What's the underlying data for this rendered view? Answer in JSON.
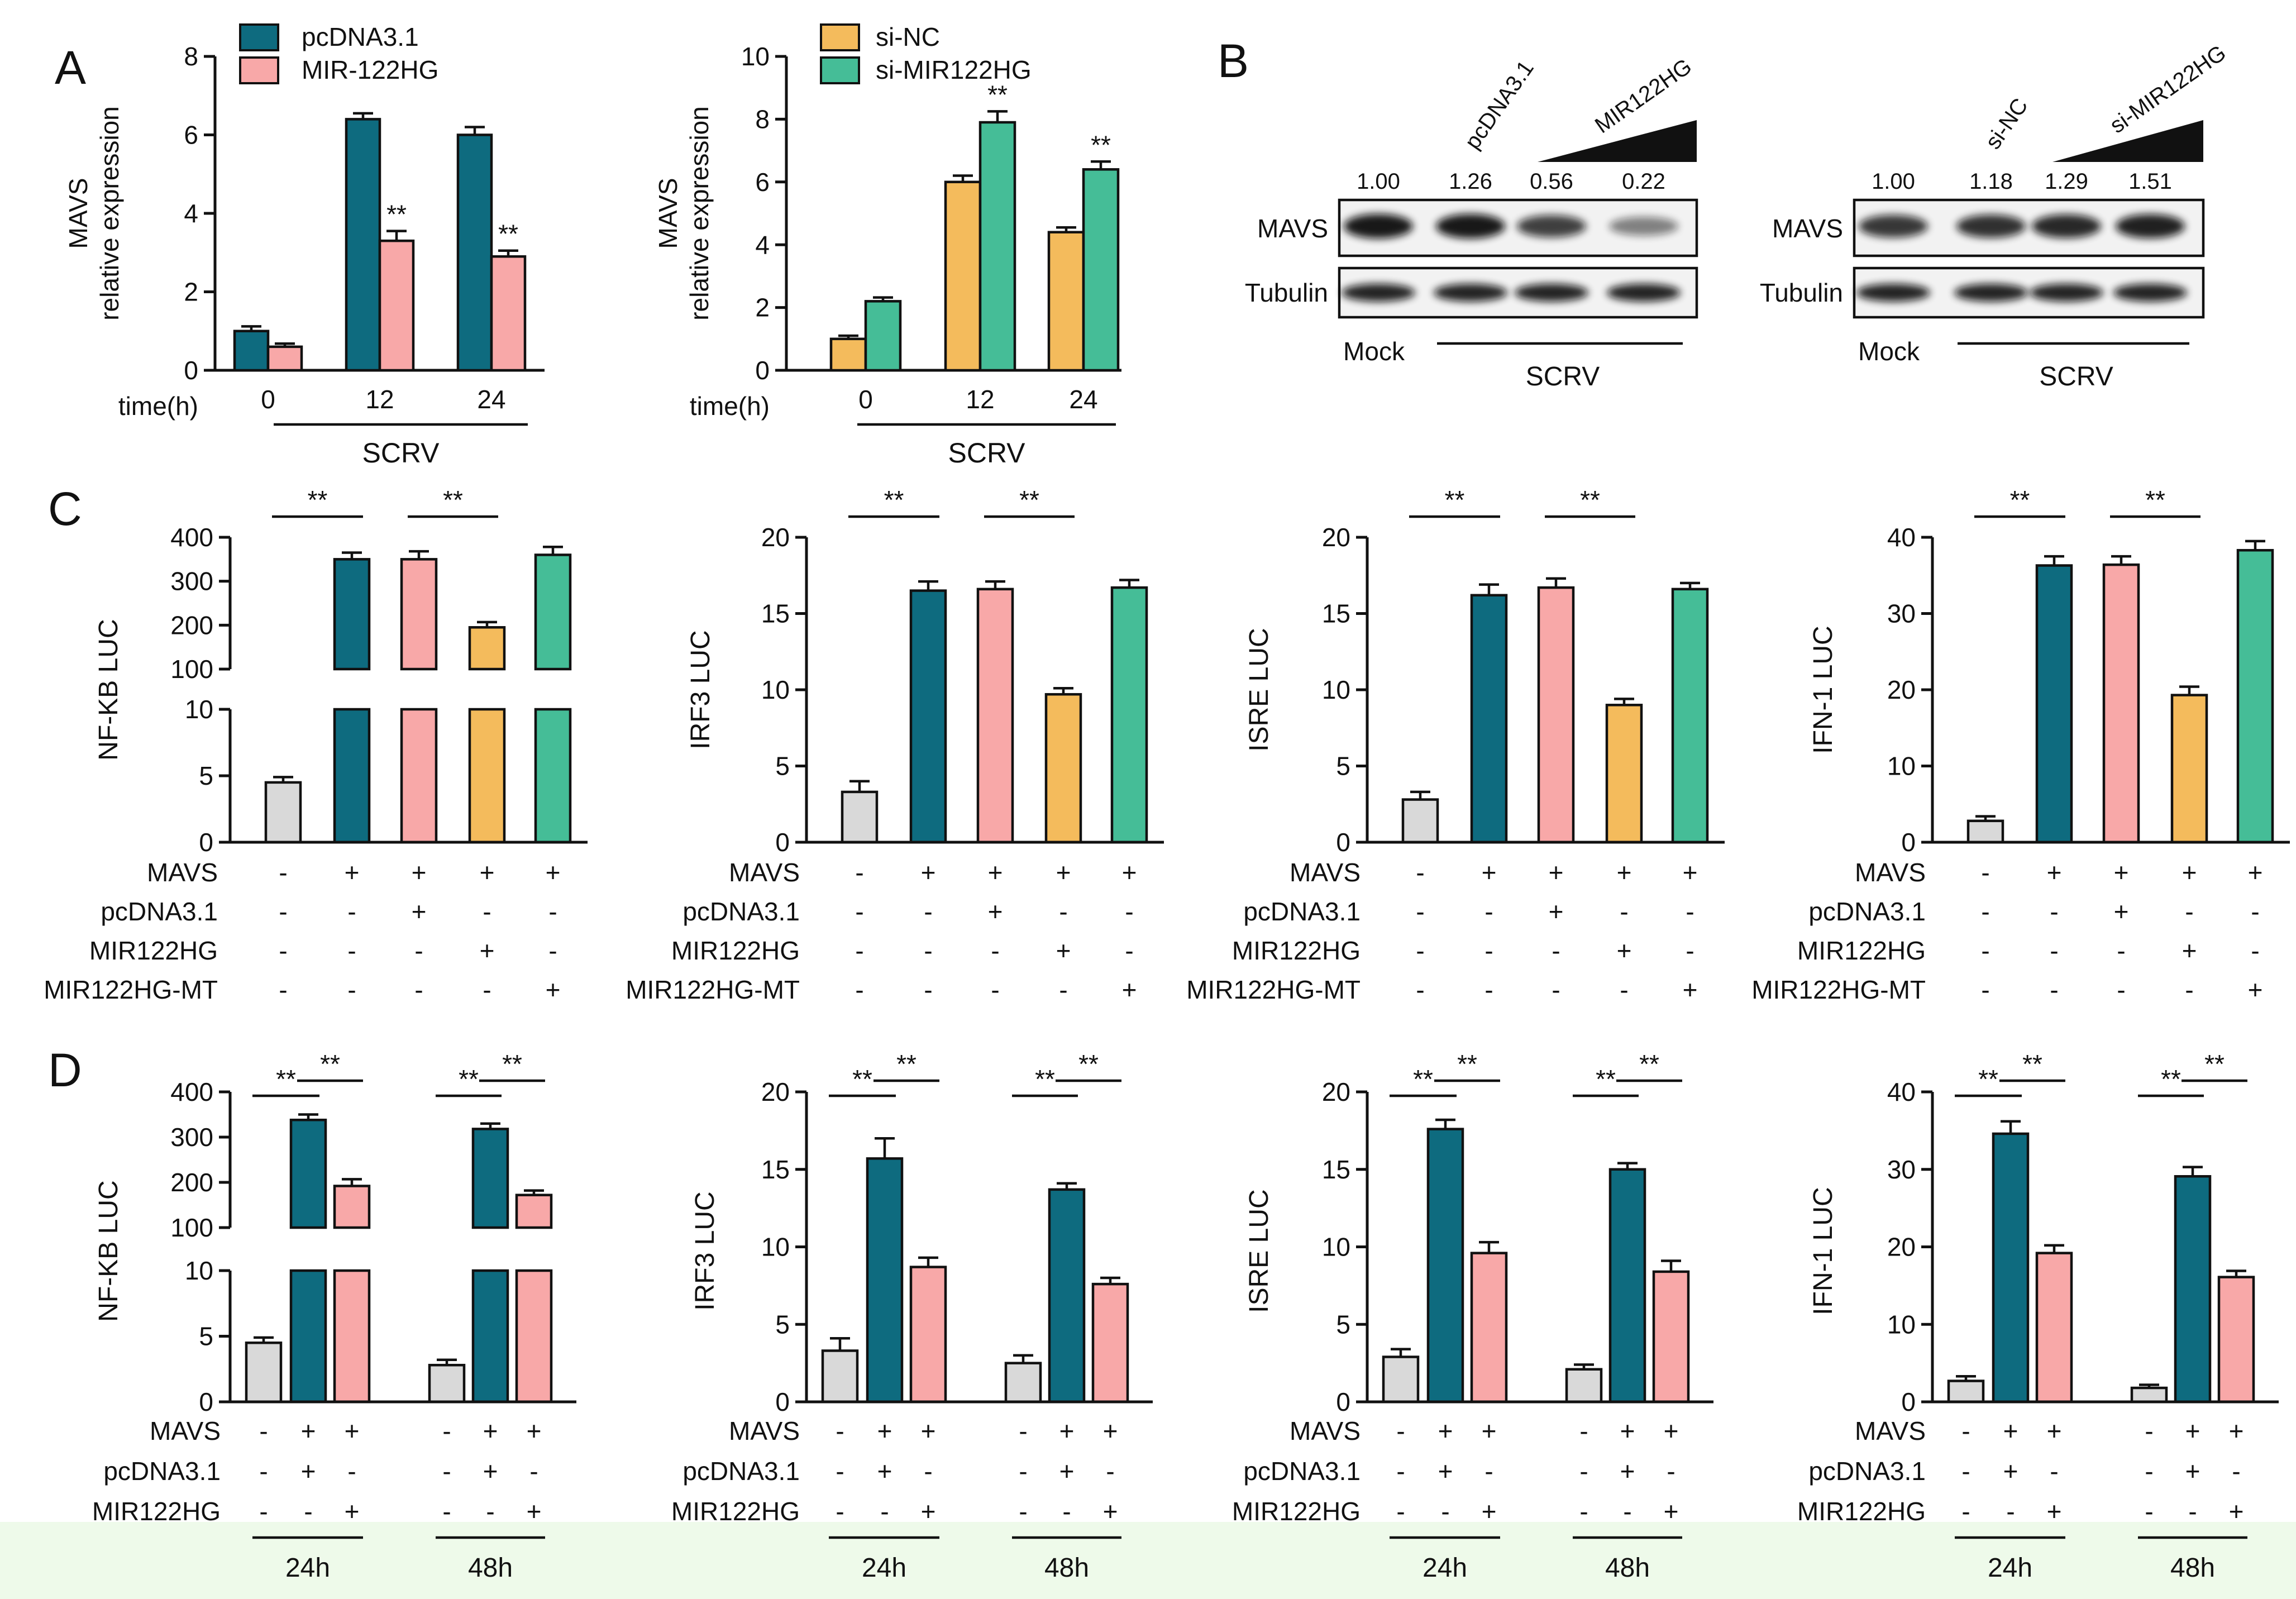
{
  "colors": {
    "teal": "#0e6b7f",
    "pink": "#f8a8a8",
    "orange": "#f4bb5c",
    "green": "#45bd97",
    "gray": "#d9d9d9",
    "footer": "#eefaea"
  },
  "panel_letters": [
    "A",
    "B",
    "C",
    "D"
  ],
  "chart_data": [
    {
      "id": "A1",
      "type": "bar",
      "title": "",
      "ylabel_lines": [
        "MAVS",
        "relative expression"
      ],
      "xlabel": "time(h)",
      "group_caption": "SCRV",
      "categories": [
        "0",
        "12",
        "24"
      ],
      "series": [
        {
          "name": "pcDNA3.1",
          "color_key": "teal",
          "values": [
            1.0,
            6.4,
            6.0
          ],
          "errors": [
            0.12,
            0.15,
            0.2
          ],
          "sig": [
            "",
            "",
            ""
          ]
        },
        {
          "name": "MIR-122HG",
          "color_key": "pink",
          "values": [
            0.6,
            3.3,
            2.9
          ],
          "errors": [
            0.08,
            0.25,
            0.15
          ],
          "sig": [
            "",
            "**",
            "**"
          ]
        }
      ],
      "ylim": [
        0,
        8
      ],
      "yticks": [
        0,
        2,
        4,
        6,
        8
      ]
    },
    {
      "id": "A2",
      "type": "bar",
      "ylabel_lines": [
        "MAVS",
        "relative expression"
      ],
      "xlabel": "time(h)",
      "group_caption": "SCRV",
      "categories": [
        "0",
        "12",
        "24"
      ],
      "series": [
        {
          "name": "si-NC",
          "color_key": "orange",
          "values": [
            1.0,
            6.0,
            4.4
          ],
          "errors": [
            0.1,
            0.2,
            0.15
          ],
          "sig": [
            "",
            "",
            ""
          ]
        },
        {
          "name": "si-MIR122HG",
          "color_key": "green",
          "values": [
            2.2,
            7.9,
            6.4
          ],
          "errors": [
            0.12,
            0.35,
            0.25
          ],
          "sig": [
            "",
            "**",
            "**"
          ]
        }
      ],
      "ylim": [
        0,
        10
      ],
      "yticks": [
        0,
        2,
        4,
        6,
        8,
        10
      ]
    },
    {
      "id": "C1",
      "type": "bar",
      "ylabel": "NF-KB LUC",
      "broken_axis": true,
      "lower_ylim": [
        0,
        10
      ],
      "lower_yticks": [
        0,
        5,
        10
      ],
      "upper_ylim": [
        100,
        400
      ],
      "upper_yticks": [
        100,
        200,
        300,
        400
      ],
      "bars": [
        {
          "value": 4.5,
          "error": 0.4,
          "color_key": "gray"
        },
        {
          "value": 350,
          "error": 15,
          "color_key": "teal"
        },
        {
          "value": 350,
          "error": 18,
          "color_key": "pink"
        },
        {
          "value": 195,
          "error": 12,
          "color_key": "orange"
        },
        {
          "value": 360,
          "error": 18,
          "color_key": "green"
        }
      ],
      "sig_brackets": [
        {
          "from": 0,
          "to": 1,
          "label": "**"
        },
        {
          "from": 2,
          "to": 3,
          "label": "**"
        }
      ]
    },
    {
      "id": "C2",
      "type": "bar",
      "ylabel": "IRF3 LUC",
      "ylim": [
        0,
        20
      ],
      "yticks": [
        0,
        5,
        10,
        15,
        20
      ],
      "bars": [
        {
          "value": 3.3,
          "error": 0.7,
          "color_key": "gray"
        },
        {
          "value": 16.5,
          "error": 0.6,
          "color_key": "teal"
        },
        {
          "value": 16.6,
          "error": 0.5,
          "color_key": "pink"
        },
        {
          "value": 9.7,
          "error": 0.4,
          "color_key": "orange"
        },
        {
          "value": 16.7,
          "error": 0.5,
          "color_key": "green"
        }
      ],
      "sig_brackets": [
        {
          "from": 0,
          "to": 1,
          "label": "**"
        },
        {
          "from": 2,
          "to": 3,
          "label": "**"
        }
      ]
    },
    {
      "id": "C3",
      "type": "bar",
      "ylabel": "ISRE LUC",
      "ylim": [
        0,
        20
      ],
      "yticks": [
        0,
        5,
        10,
        15,
        20
      ],
      "bars": [
        {
          "value": 2.8,
          "error": 0.5,
          "color_key": "gray"
        },
        {
          "value": 16.2,
          "error": 0.7,
          "color_key": "teal"
        },
        {
          "value": 16.7,
          "error": 0.6,
          "color_key": "pink"
        },
        {
          "value": 9.0,
          "error": 0.4,
          "color_key": "orange"
        },
        {
          "value": 16.6,
          "error": 0.4,
          "color_key": "green"
        }
      ],
      "sig_brackets": [
        {
          "from": 0,
          "to": 1,
          "label": "**"
        },
        {
          "from": 2,
          "to": 3,
          "label": "**"
        }
      ]
    },
    {
      "id": "C4",
      "type": "bar",
      "ylabel": "IFN-1 LUC",
      "ylim": [
        0,
        40
      ],
      "yticks": [
        0,
        10,
        20,
        30,
        40
      ],
      "bars": [
        {
          "value": 2.8,
          "error": 0.6,
          "color_key": "gray"
        },
        {
          "value": 36.3,
          "error": 1.2,
          "color_key": "teal"
        },
        {
          "value": 36.4,
          "error": 1.1,
          "color_key": "pink"
        },
        {
          "value": 19.3,
          "error": 1.1,
          "color_key": "orange"
        },
        {
          "value": 38.3,
          "error": 1.2,
          "color_key": "green"
        }
      ],
      "sig_brackets": [
        {
          "from": 0,
          "to": 1,
          "label": "**"
        },
        {
          "from": 2,
          "to": 3,
          "label": "**"
        }
      ]
    },
    {
      "id": "D1",
      "type": "bar",
      "ylabel": "NF-KB LUC",
      "broken_axis": true,
      "lower_ylim": [
        0,
        10
      ],
      "lower_yticks": [
        0,
        5,
        10
      ],
      "upper_ylim": [
        100,
        400
      ],
      "upper_yticks": [
        100,
        200,
        300,
        400
      ],
      "bars": [
        {
          "value": 4.5,
          "error": 0.4,
          "color_key": "gray"
        },
        {
          "value": 338,
          "error": 12,
          "color_key": "teal"
        },
        {
          "value": 192,
          "error": 15,
          "color_key": "pink"
        },
        {
          "value": 2.8,
          "error": 0.4,
          "color_key": "gray"
        },
        {
          "value": 318,
          "error": 12,
          "color_key": "teal"
        },
        {
          "value": 172,
          "error": 10,
          "color_key": "pink"
        }
      ],
      "sig_brackets": [
        {
          "from": 0,
          "to": 1,
          "label": "**"
        },
        {
          "from": 1,
          "to": 2,
          "label": "**"
        },
        {
          "from": 3,
          "to": 4,
          "label": "**"
        },
        {
          "from": 4,
          "to": 5,
          "label": "**"
        }
      ]
    },
    {
      "id": "D2",
      "type": "bar",
      "ylabel": "IRF3 LUC",
      "ylim": [
        0,
        20
      ],
      "yticks": [
        0,
        5,
        10,
        15,
        20
      ],
      "bars": [
        {
          "value": 3.3,
          "error": 0.8,
          "color_key": "gray"
        },
        {
          "value": 15.7,
          "error": 1.3,
          "color_key": "teal"
        },
        {
          "value": 8.7,
          "error": 0.6,
          "color_key": "pink"
        },
        {
          "value": 2.5,
          "error": 0.5,
          "color_key": "gray"
        },
        {
          "value": 13.7,
          "error": 0.4,
          "color_key": "teal"
        },
        {
          "value": 7.6,
          "error": 0.4,
          "color_key": "pink"
        }
      ],
      "sig_brackets": [
        {
          "from": 0,
          "to": 1,
          "label": "**"
        },
        {
          "from": 1,
          "to": 2,
          "label": "**"
        },
        {
          "from": 3,
          "to": 4,
          "label": "**"
        },
        {
          "from": 4,
          "to": 5,
          "label": "**"
        }
      ]
    },
    {
      "id": "D3",
      "type": "bar",
      "ylabel": "ISRE LUC",
      "ylim": [
        0,
        20
      ],
      "yticks": [
        0,
        5,
        10,
        15,
        20
      ],
      "bars": [
        {
          "value": 2.9,
          "error": 0.5,
          "color_key": "gray"
        },
        {
          "value": 17.6,
          "error": 0.6,
          "color_key": "teal"
        },
        {
          "value": 9.6,
          "error": 0.7,
          "color_key": "pink"
        },
        {
          "value": 2.1,
          "error": 0.3,
          "color_key": "gray"
        },
        {
          "value": 15.0,
          "error": 0.4,
          "color_key": "teal"
        },
        {
          "value": 8.4,
          "error": 0.7,
          "color_key": "pink"
        }
      ],
      "sig_brackets": [
        {
          "from": 0,
          "to": 1,
          "label": "**"
        },
        {
          "from": 1,
          "to": 2,
          "label": "**"
        },
        {
          "from": 3,
          "to": 4,
          "label": "**"
        },
        {
          "from": 4,
          "to": 5,
          "label": "**"
        }
      ]
    },
    {
      "id": "D4",
      "type": "bar",
      "ylabel": "IFN-1 LUC",
      "ylim": [
        0,
        40
      ],
      "yticks": [
        0,
        10,
        20,
        30,
        40
      ],
      "bars": [
        {
          "value": 2.7,
          "error": 0.6,
          "color_key": "gray"
        },
        {
          "value": 34.6,
          "error": 1.6,
          "color_key": "teal"
        },
        {
          "value": 19.2,
          "error": 1.0,
          "color_key": "pink"
        },
        {
          "value": 1.8,
          "error": 0.4,
          "color_key": "gray"
        },
        {
          "value": 29.1,
          "error": 1.2,
          "color_key": "teal"
        },
        {
          "value": 16.1,
          "error": 0.8,
          "color_key": "pink"
        }
      ],
      "sig_brackets": [
        {
          "from": 0,
          "to": 1,
          "label": "**"
        },
        {
          "from": 1,
          "to": 2,
          "label": "**"
        },
        {
          "from": 3,
          "to": 4,
          "label": "**"
        },
        {
          "from": 4,
          "to": 5,
          "label": "**"
        }
      ]
    }
  ],
  "treatment_table_C": {
    "rows": [
      {
        "label": "MAVS",
        "marks": [
          "-",
          "+",
          "+",
          "+",
          "+"
        ]
      },
      {
        "label": "pcDNA3.1",
        "marks": [
          "-",
          "-",
          "+",
          "-",
          "-"
        ]
      },
      {
        "label": "MIR122HG",
        "marks": [
          "-",
          "-",
          "-",
          "+",
          "-"
        ]
      },
      {
        "label": "MIR122HG-MT",
        "marks": [
          "-",
          "-",
          "-",
          "-",
          "+"
        ]
      }
    ]
  },
  "treatment_table_D": {
    "rows": [
      {
        "label": "MAVS",
        "marks": [
          "-",
          "+",
          "+",
          "-",
          "+",
          "+"
        ]
      },
      {
        "label": "pcDNA3.1",
        "marks": [
          "-",
          "+",
          "-",
          "-",
          "+",
          "-"
        ]
      },
      {
        "label": "MIR122HG",
        "marks": [
          "-",
          "-",
          "+",
          "-",
          "-",
          "+"
        ]
      }
    ],
    "time_groups": [
      "24h",
      "48h"
    ]
  },
  "blots": [
    {
      "id": "B1",
      "lane_header_labels": [
        "pcDNA3.1",
        "MIR122HG"
      ],
      "quant": [
        "1.00",
        "1.26",
        "0.56",
        "0.22"
      ],
      "rows": [
        "MAVS",
        "Tubulin"
      ],
      "mock_label": "Mock",
      "group_caption": "SCRV",
      "mavs_band_intensity": [
        1.0,
        1.0,
        0.75,
        0.35
      ]
    },
    {
      "id": "B2",
      "lane_header_labels": [
        "si-NC",
        "si-MIR122HG"
      ],
      "quant": [
        "1.00",
        "1.18",
        "1.29",
        "1.51"
      ],
      "rows": [
        "MAVS",
        "Tubulin"
      ],
      "mock_label": "Mock",
      "group_caption": "SCRV",
      "mavs_band_intensity": [
        0.8,
        0.85,
        0.9,
        0.95
      ]
    }
  ]
}
